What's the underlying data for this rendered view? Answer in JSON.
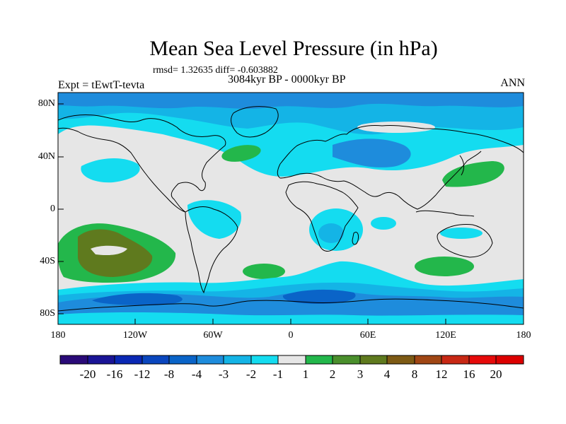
{
  "title": "Mean Sea Level Pressure (in hPa)",
  "stats": "rmsd= 1.32635 diff= -0.603882",
  "period": "3084kyr BP - 0000kyr BP",
  "experiment": "Expt = tEwtT-tevta",
  "season": "ANN",
  "lat_labels": [
    "80N",
    "40N",
    "0",
    "40S",
    "80S"
  ],
  "lon_labels": [
    "180",
    "120W",
    "60W",
    "0",
    "60E",
    "120E",
    "180"
  ],
  "colorbar": {
    "labels": [
      "-20",
      "-16",
      "-12",
      "-8",
      "-4",
      "-3",
      "-2",
      "-1",
      "1",
      "2",
      "3",
      "4",
      "8",
      "12",
      "16",
      "20"
    ],
    "colors": [
      "#2a0a78",
      "#1a1496",
      "#0a28b4",
      "#0a46be",
      "#0a64c8",
      "#1e8cdc",
      "#14b4e6",
      "#14dcf0",
      "#e6e6e6",
      "#23b74b",
      "#4a8f2c",
      "#5f7a1e",
      "#7d5a14",
      "#a04614",
      "#c82814",
      "#e60a0a",
      "#dc0000"
    ]
  },
  "colors": {
    "neutral": "#e6e6e6",
    "cyan": "#14dcf0",
    "light_blue": "#14b4e6",
    "mid_blue": "#1e8cdc",
    "dark_blue": "#0a64c8",
    "green": "#23b74b",
    "olive": "#5f7a1e"
  }
}
